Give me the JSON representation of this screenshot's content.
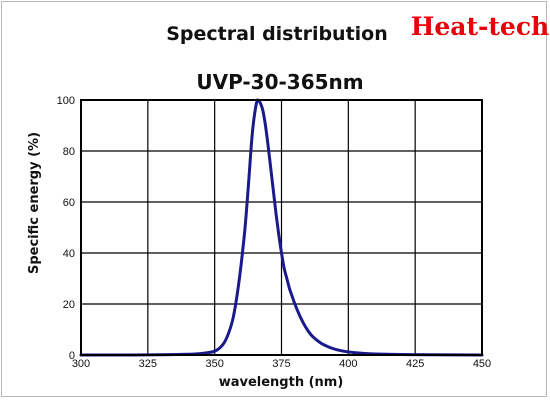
{
  "brand": {
    "text": "Heat-tech",
    "color": "#e8000b"
  },
  "chart_data": {
    "type": "line",
    "title": "Spectral distribution",
    "subtitle": "UVP-30-365nm",
    "xlabel": "wavelength (nm)",
    "ylabel": "Specific energy (%)",
    "xlim": [
      300,
      450
    ],
    "ylim": [
      0,
      100
    ],
    "xticks": [
      300,
      325,
      350,
      375,
      400,
      425,
      450
    ],
    "yticks": [
      0,
      20,
      40,
      60,
      80,
      100
    ],
    "grid": true,
    "series": [
      {
        "color": "#1a1a8c",
        "x": [
          300,
          320,
          330,
          340,
          345,
          350,
          353,
          355,
          357,
          359,
          361,
          362,
          363,
          364,
          365,
          366,
          367,
          368,
          369,
          370,
          371,
          372,
          373,
          374,
          375,
          376,
          377,
          378,
          379,
          380,
          382,
          384,
          386,
          388,
          390,
          393,
          396,
          400,
          405,
          410,
          420,
          430,
          450
        ],
        "y": [
          0,
          0,
          0.1,
          0.3,
          0.6,
          1.5,
          4,
          8,
          15,
          28,
          46,
          58,
          72,
          86,
          95,
          100,
          99,
          96,
          90,
          82,
          73,
          64,
          55,
          47,
          40,
          34,
          30,
          26,
          23,
          20,
          15,
          11,
          8,
          6,
          4.5,
          3,
          2,
          1.2,
          0.7,
          0.4,
          0.2,
          0.1,
          0
        ]
      }
    ]
  }
}
